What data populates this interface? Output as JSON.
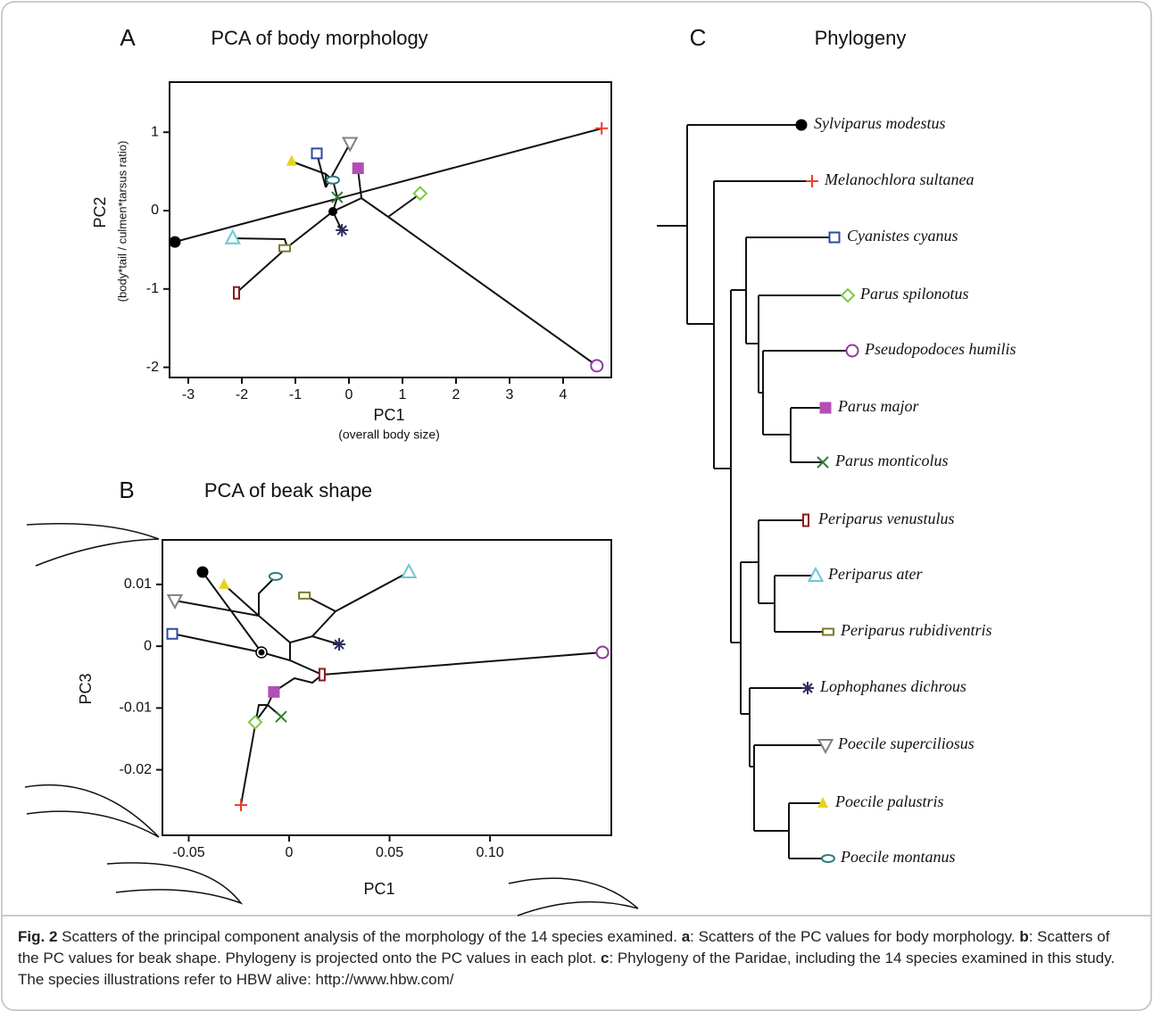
{
  "chart_data": [
    {
      "type": "scatter",
      "panel_label": "A",
      "title": "PCA of body morphology",
      "x_label": "PC1",
      "x_sublabel": "(overall body size)",
      "y_label": "PC2",
      "y_sublabel": "(body*tail / culmen*tarsus ratio)",
      "xlim": [
        -3.35,
        4.9
      ],
      "ylim": [
        -2.13,
        1.64
      ],
      "xticks": [
        -3,
        -2,
        -1,
        0,
        1,
        2,
        3,
        4
      ],
      "yticks": [
        -2,
        -1,
        0,
        1
      ],
      "x": [
        -3.25,
        4.72,
        -0.6,
        1.33,
        4.63,
        0.17,
        -0.22,
        -2.1,
        -2.17,
        -1.2,
        -0.13,
        0.02,
        -1.07,
        -0.3
      ],
      "values": [
        -0.4,
        1.05,
        0.73,
        0.22,
        -1.98,
        0.54,
        0.17,
        -1.05,
        -0.35,
        -0.48,
        -0.25,
        0.86,
        0.63,
        0.39
      ]
    },
    {
      "type": "scatter",
      "panel_label": "B",
      "title": "PCA of beak shape",
      "x_label": "PC1",
      "y_label": "PC3",
      "xlim": [
        -0.0631,
        0.1604
      ],
      "ylim": [
        -0.0306,
        0.0172
      ],
      "xticks": [
        -0.05,
        0,
        0.05,
        {
          "value": 0.1,
          "label": "0.10"
        }
      ],
      "yticks": [
        -0.02,
        -0.01,
        0,
        0.01
      ],
      "x": [
        -0.0431,
        -0.024,
        -0.0582,
        -0.0169,
        0.156,
        -0.0076,
        -0.004,
        0.0164,
        0.0596,
        0.0076,
        0.0249,
        -0.0569,
        -0.0324,
        -0.0067
      ],
      "values": [
        0.012,
        -0.0257,
        0.002,
        -0.0123,
        -0.001,
        -0.0074,
        -0.0114,
        -0.0046,
        0.012,
        0.0082,
        0.0003,
        0.0074,
        0.01,
        0.0113
      ]
    }
  ],
  "phylogeny": {
    "panel_label": "C",
    "title": "Phylogeny",
    "leaves": [
      {
        "name": "Sylviparus modestus",
        "color": "#000000",
        "marker": "filled-circle"
      },
      {
        "name": "Melanochlora sultanea",
        "color": "#e8402a",
        "marker": "plus"
      },
      {
        "name": "Cyanistes cyanus",
        "color": "#2e4a9e",
        "marker": "open-square"
      },
      {
        "name": "Parus spilonotus",
        "color": "#7ac943",
        "marker": "open-diamond"
      },
      {
        "name": "Pseudopodoces humilis",
        "color": "#8e3a9d",
        "marker": "open-circle"
      },
      {
        "name": "Parus major",
        "color": "#b04fb5",
        "marker": "filled-square"
      },
      {
        "name": "Parus monticolus",
        "color": "#2e7d32",
        "marker": "x"
      },
      {
        "name": "Periparus venustulus",
        "color": "#8b1a1a",
        "marker": "open-tall-rect"
      },
      {
        "name": "Periparus ater",
        "color": "#6cc8d0",
        "marker": "open-triangle"
      },
      {
        "name": "Periparus rubidiventris",
        "color": "#7a7a2a",
        "marker": "open-wide-rect"
      },
      {
        "name": "Lophophanes dichrous",
        "color": "#2c2c5e",
        "marker": "asterisk"
      },
      {
        "name": "Poecile superciliosus",
        "color": "#808080",
        "marker": "open-down-triangle"
      },
      {
        "name": "Poecile palustris",
        "color": "#e6d21e",
        "marker": "filled-triangle"
      },
      {
        "name": "Poecile montanus",
        "color": "#2a7a80",
        "marker": "open-ellipse"
      }
    ]
  },
  "caption": {
    "label": "Fig. 2",
    "parts": [
      " Scatters of the principal component analysis of the morphology of the 14 species examined. ",
      "a",
      ": Scatters of the PC values for body morphology. ",
      "b",
      ": Scatters of the PC values for beak shape. Phylogeny is projected onto the PC values in each plot. ",
      "c",
      ": Phylogeny of the Paridae, including the 14 species examined in this study. The species illustrations refer to HBW alive: http://www.hbw.com/"
    ]
  }
}
